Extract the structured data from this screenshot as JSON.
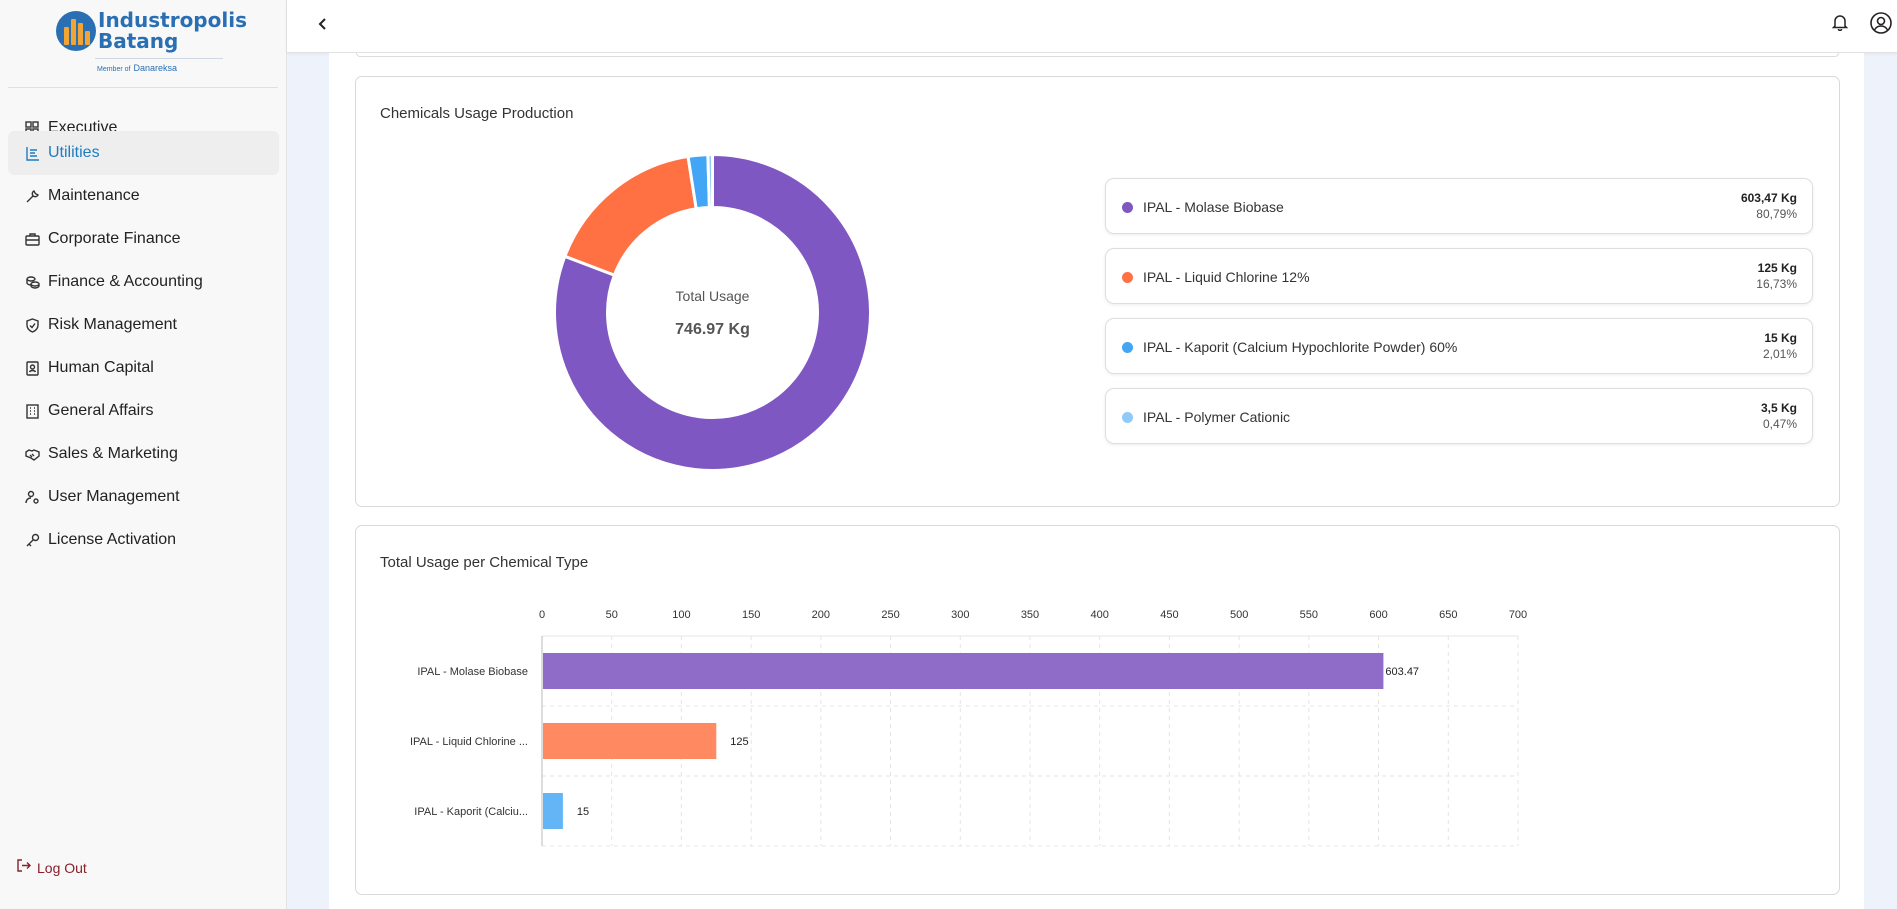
{
  "brand": {
    "name_line1": "Industropolis",
    "name_line2": "Batang",
    "member_prefix": "Member of",
    "member_name": "Danareksa",
    "primary_color": "#2a6fb3",
    "accent_color": "#f2a533"
  },
  "sidebar": {
    "items": [
      {
        "label": "Executive",
        "icon": "dashboard-icon",
        "active": false
      },
      {
        "label": "Utilities",
        "icon": "utilities-icon",
        "active": true
      },
      {
        "label": "Maintenance",
        "icon": "wrench-icon",
        "active": false
      },
      {
        "label": "Corporate Finance",
        "icon": "briefcase-icon",
        "active": false
      },
      {
        "label": "Finance & Accounting",
        "icon": "coins-icon",
        "active": false
      },
      {
        "label": "Risk Management",
        "icon": "shield-icon",
        "active": false
      },
      {
        "label": "Human Capital",
        "icon": "id-badge-icon",
        "active": false
      },
      {
        "label": "General Affairs",
        "icon": "building-icon",
        "active": false
      },
      {
        "label": "Sales & Marketing",
        "icon": "handshake-icon",
        "active": false
      },
      {
        "label": "User Management",
        "icon": "user-gear-icon",
        "active": false
      },
      {
        "label": "License Activation",
        "icon": "key-icon",
        "active": false
      }
    ],
    "logout_label": "Log Out",
    "active_color": "#1e7cc0",
    "logout_color": "#8a1f2a"
  },
  "topbar": {
    "back_icon": "chevron-left-icon",
    "notification_icon": "bell-icon",
    "profile_icon": "user-circle-icon"
  },
  "donut_card": {
    "title": "Chemicals Usage Production",
    "center_label": "Total Usage",
    "center_value": "746.97 Kg",
    "legend": [
      {
        "name": "IPAL - Molase Biobase",
        "value": "603,47 Kg",
        "percent": "80,79%",
        "color": "#7e57c2"
      },
      {
        "name": "IPAL - Liquid Chlorine 12%",
        "value": "125 Kg",
        "percent": "16,73%",
        "color": "#ff7043"
      },
      {
        "name": "IPAL - Kaporit (Calcium Hypochlorite Powder) 60%",
        "value": "15 Kg",
        "percent": "2,01%",
        "color": "#42a5f5"
      },
      {
        "name": "IPAL - Polymer Cationic",
        "value": "3,5 Kg",
        "percent": "0,47%",
        "color": "#90caf9"
      }
    ]
  },
  "chart_data": [
    {
      "type": "pie",
      "title": "Chemicals Usage Production",
      "categories": [
        "IPAL - Molase Biobase",
        "IPAL - Liquid Chlorine 12%",
        "IPAL - Kaporit (Calcium Hypochlorite Powder) 60%",
        "IPAL - Polymer Cationic"
      ],
      "values": [
        603.47,
        125,
        15,
        3.5
      ],
      "colors": [
        "#7e57c2",
        "#ff7043",
        "#42a5f5",
        "#90caf9"
      ],
      "donut": true,
      "center_text": "Total Usage",
      "center_value": "746.97 Kg"
    },
    {
      "type": "bar",
      "orientation": "horizontal",
      "title": "Total Usage per Chemical Type",
      "categories": [
        "IPAL - Molase Biobase",
        "IPAL - Liquid Chlorine ...",
        "IPAL - Kaporit (Calciu..."
      ],
      "values": [
        603.47,
        125,
        15
      ],
      "value_labels": [
        "603.47",
        "125",
        "15"
      ],
      "colors": [
        "#8e6cc8",
        "#ff8a62",
        "#64b5f6"
      ],
      "xlim": [
        0,
        700
      ],
      "xticks": [
        "0",
        "50",
        "100",
        "150",
        "200",
        "250",
        "300",
        "350",
        "400",
        "450",
        "500",
        "550",
        "600",
        "650",
        "700"
      ],
      "axis_position": "top",
      "grid": true
    }
  ]
}
